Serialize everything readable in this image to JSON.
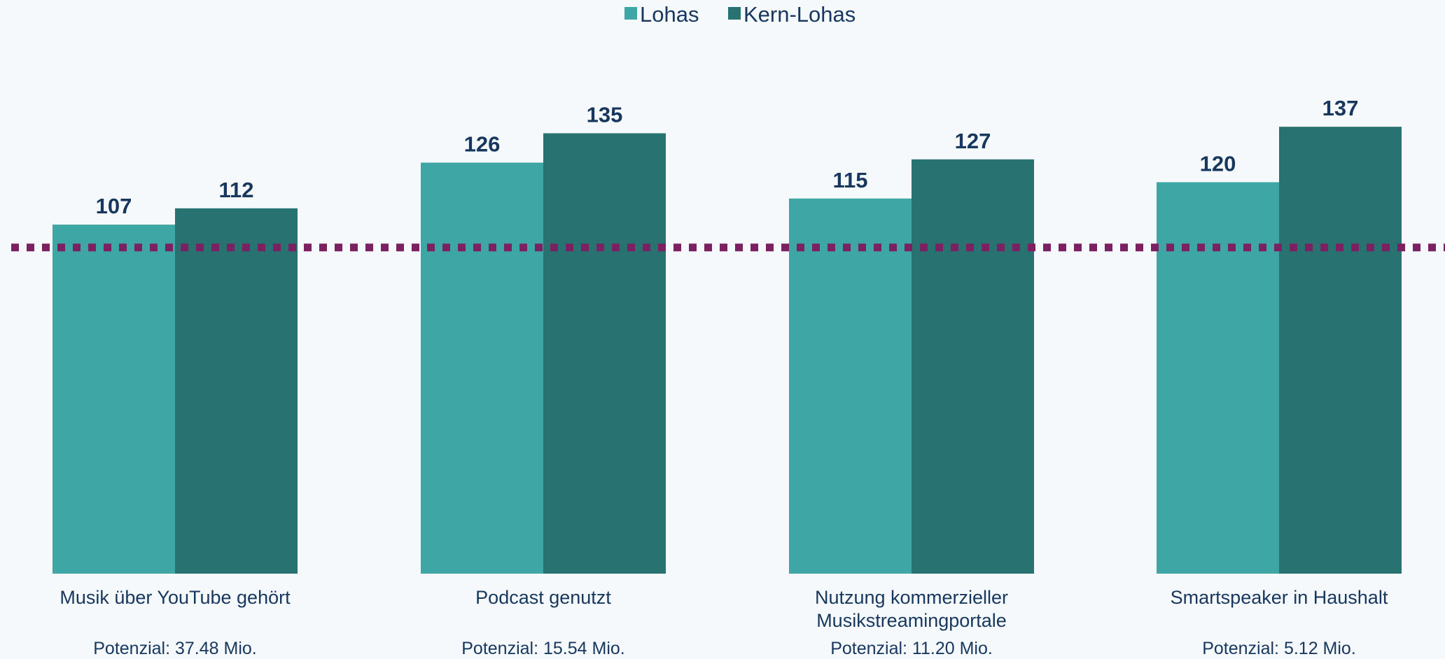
{
  "chart_data": {
    "type": "bar",
    "categories": [
      "Musik über YouTube gehört",
      "Podcast genutzt",
      "Nutzung kommerzieller Musikstreamingportale",
      "Smartspeaker in Haushalt"
    ],
    "subtexts": [
      "Potenzial: 37.48 Mio.",
      "Potenzial: 15.54 Mio.",
      "Potenzial: 11.20 Mio.",
      "Potenzial: 5.12 Mio."
    ],
    "series": [
      {
        "name": "Lohas",
        "color": "#3fa6a6",
        "values": [
          107,
          126,
          115,
          120
        ]
      },
      {
        "name": "Kern-Lohas",
        "color": "#287371",
        "values": [
          112,
          135,
          127,
          137
        ]
      }
    ],
    "reference_line": 100,
    "reference_color": "#7b2162",
    "ylim": [
      0,
      175
    ],
    "legend": "top"
  }
}
